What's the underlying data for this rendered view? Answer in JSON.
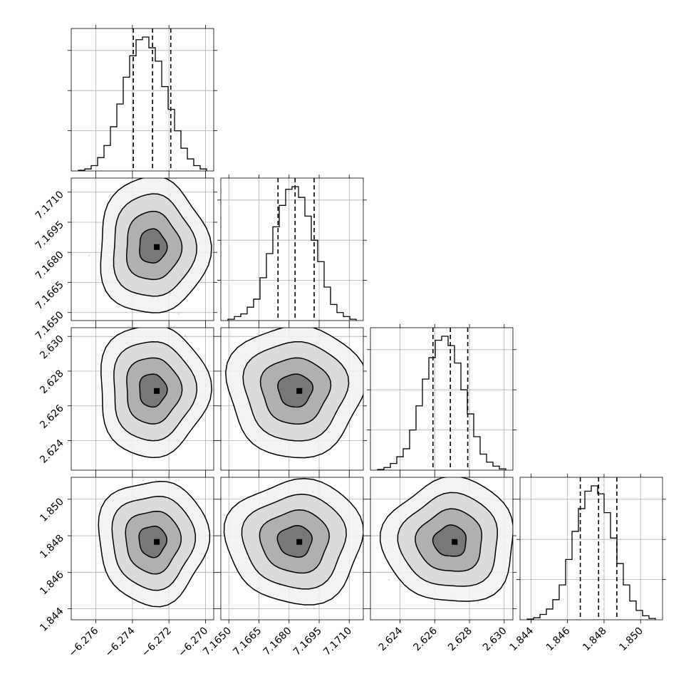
{
  "chart_data": {
    "type": "corner",
    "grid": true,
    "parameters": [
      {
        "index": 0,
        "center": -6.2729,
        "sigma": 0.00075,
        "lim": [
          -6.27735,
          -6.26955
        ],
        "ticks": [
          "−6.276",
          "−6.274",
          "−6.272",
          "−6.270"
        ],
        "tick_values": [
          -6.276,
          -6.274,
          -6.272,
          -6.27
        ],
        "quantiles": [
          -6.27395,
          -6.2729,
          -6.2719
        ],
        "hist": [
          0.005,
          0.015,
          0.04,
          0.1,
          0.19,
          0.33,
          0.5,
          0.7,
          0.86,
          0.98,
          1.0,
          0.92,
          0.82,
          0.63,
          0.46,
          0.3,
          0.17,
          0.09,
          0.04,
          0.015
        ]
      },
      {
        "index": 1,
        "center": 7.1683,
        "sigma": 0.00085,
        "lim": [
          7.1646,
          7.1717
        ],
        "ticks": [
          "7.1650",
          "7.1665",
          "7.1680",
          "7.1695",
          "7.1710"
        ],
        "tick_values": [
          7.165,
          7.1665,
          7.168,
          7.1695,
          7.171
        ],
        "quantiles": [
          7.16745,
          7.1683,
          7.16925
        ],
        "hist": [
          0.01,
          0.03,
          0.05,
          0.1,
          0.16,
          0.32,
          0.5,
          0.7,
          0.86,
          0.98,
          1.0,
          0.92,
          0.78,
          0.6,
          0.44,
          0.25,
          0.12,
          0.06,
          0.03,
          0.01
        ]
      },
      {
        "index": 2,
        "center": 2.6269,
        "sigma": 0.00095,
        "lim": [
          2.6223,
          2.6305
        ],
        "ticks": [
          "2.624",
          "2.626",
          "2.628",
          "2.630"
        ],
        "tick_values": [
          2.624,
          2.626,
          2.628,
          2.63
        ],
        "quantiles": [
          2.6259,
          2.6269,
          2.6279
        ],
        "hist": [
          0.005,
          0.02,
          0.05,
          0.1,
          0.16,
          0.3,
          0.48,
          0.68,
          0.84,
          0.97,
          1.0,
          0.93,
          0.8,
          0.6,
          0.42,
          0.25,
          0.12,
          0.06,
          0.03,
          0.01
        ]
      },
      {
        "index": 3,
        "center": 1.8477,
        "sigma": 0.00085,
        "lim": [
          1.8434,
          1.8512
        ],
        "ticks": [
          "1.844",
          "1.846",
          "1.848",
          "1.850"
        ],
        "tick_values": [
          1.844,
          1.846,
          1.848,
          1.85
        ],
        "quantiles": [
          1.8467,
          1.8477,
          1.8487
        ],
        "hist": [
          0.005,
          0.015,
          0.04,
          0.08,
          0.15,
          0.26,
          0.45,
          0.66,
          0.83,
          0.96,
          1.0,
          0.94,
          0.8,
          0.61,
          0.42,
          0.26,
          0.14,
          0.07,
          0.03,
          0.01
        ]
      }
    ],
    "scatter_samples": 900,
    "contour_levels_sigma": [
      0.5,
      1.0,
      1.5,
      2.0
    ]
  }
}
